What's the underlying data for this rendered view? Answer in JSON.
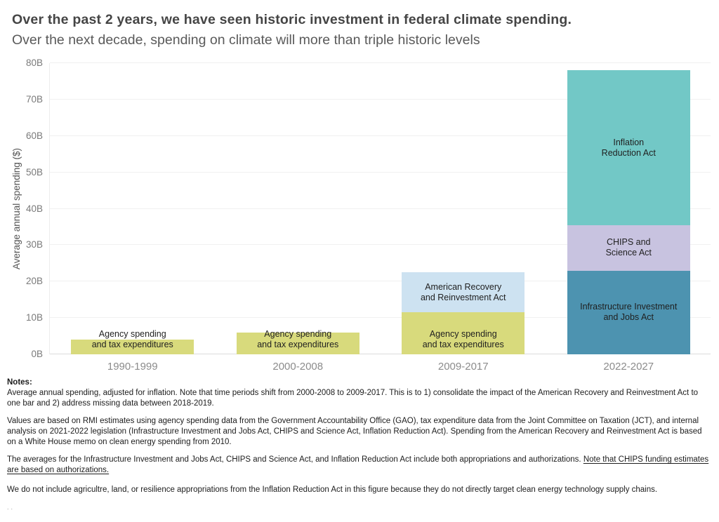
{
  "header": {
    "title": "Over the past 2 years, we have seen historic investment in federal climate spending.",
    "subtitle": "Over the next decade, spending on climate will more than triple historic levels"
  },
  "chart_data": {
    "type": "bar",
    "stacked": true,
    "title": "Over the past 2 years, we have seen historic investment in federal climate spending.",
    "subtitle": "Over the next decade, spending on climate will more than triple historic levels",
    "xlabel": "",
    "ylabel": "Average annual spending ($)",
    "ylim": [
      0,
      80
    ],
    "ytick_step": 10,
    "ytick_suffix": "B",
    "grid": true,
    "legend_position": "none",
    "categories": [
      "1990-1999",
      "2000-2008",
      "2009-2017",
      "2022-2027"
    ],
    "series": [
      {
        "name": "Agency spending and tax expenditures",
        "label": "Agency spending\nand tax expenditures",
        "color": "#d8da7c",
        "values": [
          4,
          6,
          11.5,
          0
        ],
        "label_anchor": "baseline"
      },
      {
        "name": "American Recovery and Reinvestment Act",
        "label": "American Recovery\nand Reinvestment Act",
        "color": "#cde2f1",
        "values": [
          0,
          0,
          11,
          0
        ],
        "label_anchor": "center"
      },
      {
        "name": "Infrastructure Investment and Jobs Act",
        "label": "Infrastructure Investment\nand Jobs Act",
        "color": "#4d93b0",
        "values": [
          0,
          0,
          0,
          23
        ],
        "label_anchor": "center"
      },
      {
        "name": "CHIPS and Science Act",
        "label": "CHIPS and\nScience Act",
        "color": "#c8c3e0",
        "values": [
          0,
          0,
          0,
          12.5
        ],
        "label_anchor": "center"
      },
      {
        "name": "Inflation Reduction Act",
        "label": "Inflation\nReduction Act",
        "color": "#72c8c6",
        "values": [
          0,
          0,
          0,
          42.5
        ],
        "label_anchor": "center"
      }
    ]
  },
  "notes": {
    "heading": "Notes:",
    "p1": "Average annual spending, adjusted for inflation. Note that time periods shift from 2000-2008 to 2009-2017. This is to 1) consolidate the impact of the American Recovery and Reinvestment Act to one bar and 2) address missing data between 2018-2019.",
    "p2": "Values are based on RMI estimates using agency spending data from the Government Accountability Office (GAO), tax expenditure data from the Joint Committee on Taxation (JCT), and internal analysis on 2021-2022 legislation (Infrastructure Investment and Jobs Act, CHIPS and Science Act, Inflation Reduction Act). Spending from the American Recovery and Reinvestment Act is based on a White House memo on clean energy spending from 2010.",
    "p3_normal": "The averages for the Infrastructure Investment and Jobs Act, CHIPS and Science Act, and Inflation Reduction Act include both appropriations and authorizations. ",
    "p3_underlined": "Note that CHIPS funding estimates are based on authorizations.",
    "p4": "We do not include agricultre, land, or resilience appropriations from the Inflation Reduction Act in this figure because they do not directly target clean energy technology supply chains.",
    "trailing": ".."
  }
}
